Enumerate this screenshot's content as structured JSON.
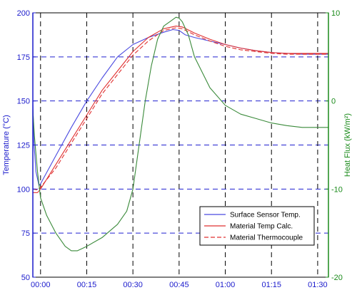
{
  "chart_data": {
    "type": "line",
    "xlabel": "",
    "y_left_label": "Temperature (°C)",
    "y_right_label": "Heat Flux (kW/m²)",
    "x_ticks": [
      "00:00",
      "00:15",
      "00:30",
      "00:45",
      "01:00",
      "01:15",
      "01:30"
    ],
    "x_tick_values": [
      0,
      15,
      30,
      45,
      60,
      75,
      90
    ],
    "xlim": [
      -2.5,
      93.5
    ],
    "y_left_ticks": [
      "50",
      "75",
      "100",
      "125",
      "150",
      "175",
      "200"
    ],
    "y_left_lim": [
      50,
      200
    ],
    "y_right_ticks": [
      "-20",
      "-10",
      "0",
      "10"
    ],
    "y_right_lim": [
      -20,
      10
    ],
    "grid": true,
    "legend_position": "lower-right",
    "colors": {
      "left_axis": "#1a1acc",
      "right_axis": "#1a8a1a",
      "grid_blue": "#2020d0",
      "grid_black": "#000000"
    },
    "series": [
      {
        "name": "Surface Sensor Temp.",
        "axis": "left",
        "color": "#4a4ae0",
        "dash": "solid",
        "x": [
          -2.5,
          -2.2,
          -1.5,
          -0.5,
          0,
          5,
          10,
          15,
          20,
          25,
          30,
          35,
          40,
          43,
          45,
          47,
          50,
          55,
          60,
          65,
          70,
          75,
          80,
          85,
          90,
          93.5
        ],
        "y": [
          150,
          128,
          110,
          102,
          103,
          119,
          135,
          150,
          163,
          175,
          182,
          186,
          189,
          190.5,
          190,
          187.5,
          186,
          184,
          182,
          180,
          178.5,
          177.5,
          177,
          176.5,
          176.5,
          176.5
        ]
      },
      {
        "name": "Material Temp Calc.",
        "axis": "left",
        "color": "#e03030",
        "dash": "solid",
        "x": [
          -2.5,
          -1,
          0,
          5,
          10,
          15,
          20,
          25,
          30,
          35,
          40,
          44,
          46,
          50,
          55,
          60,
          65,
          70,
          75,
          80,
          85,
          90,
          93.5
        ],
        "y": [
          98,
          98,
          100,
          114,
          128,
          142,
          156,
          167,
          178,
          186,
          191,
          192.5,
          192,
          188.5,
          185,
          182,
          180,
          178.5,
          177.5,
          177,
          177,
          177,
          177
        ]
      },
      {
        "name": "Material Thermocouple",
        "axis": "left",
        "color": "#e03030",
        "dash": "dashed",
        "x": [
          -2.5,
          -1,
          0,
          5,
          10,
          15,
          20,
          25,
          30,
          35,
          40,
          44,
          46,
          50,
          55,
          60,
          65,
          70,
          75,
          80,
          85,
          90,
          93.5
        ],
        "y": [
          100,
          99.5,
          101,
          112,
          126,
          140,
          154,
          165,
          176,
          184,
          190,
          191.5,
          191,
          187.5,
          184,
          181,
          179,
          178,
          177,
          176.5,
          176.5,
          176.5,
          176.5
        ]
      },
      {
        "name": "",
        "axis": "right",
        "color": "#3a8a3a",
        "dash": "solid",
        "x": [
          -2.5,
          -2,
          -1,
          0,
          2,
          5,
          8,
          10,
          12,
          15,
          20,
          25,
          28,
          30,
          32,
          34,
          36,
          38,
          40,
          42,
          44,
          45,
          46,
          48,
          50,
          55,
          60,
          65,
          70,
          75,
          80,
          85,
          90,
          93.5
        ],
        "y": [
          -1,
          -4,
          -8,
          -11,
          -13,
          -15,
          -16.5,
          -17,
          -17,
          -16.5,
          -15.5,
          -14,
          -12.5,
          -10,
          -5,
          0,
          4,
          7,
          8.5,
          9,
          9.5,
          9.4,
          9,
          7.5,
          5,
          1.5,
          -0.5,
          -1.5,
          -2,
          -2.5,
          -2.8,
          -3,
          -3,
          -3
        ]
      }
    ]
  }
}
